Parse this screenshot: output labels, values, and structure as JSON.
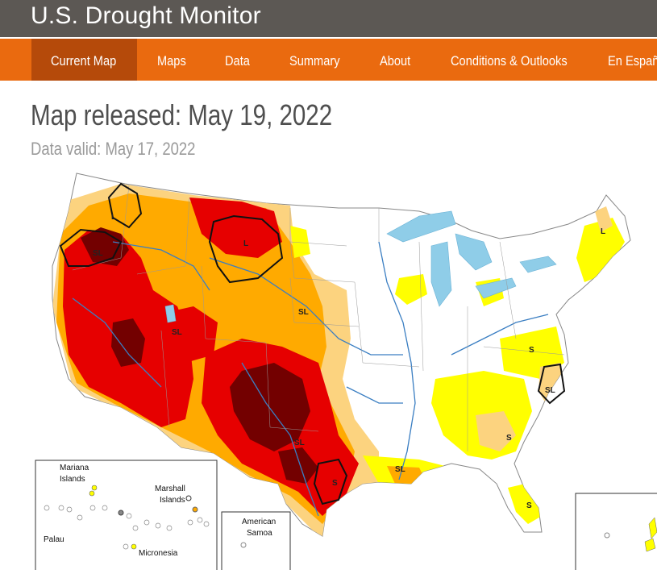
{
  "site": {
    "title": "U.S. Drought Monitor"
  },
  "nav": {
    "items": [
      {
        "label": "Current Map",
        "active": true
      },
      {
        "label": "Maps"
      },
      {
        "label": "Data"
      },
      {
        "label": "Summary"
      },
      {
        "label": "About"
      },
      {
        "label": "Conditions & Outlooks"
      },
      {
        "label": "En Españo"
      }
    ]
  },
  "header": {
    "released": "Map released: May 19, 2022",
    "valid": "Data valid: May 17, 2022"
  },
  "map": {
    "colors": {
      "D0": "#ffff00",
      "D1": "#fcd37f",
      "D2": "#ffaa00",
      "D3": "#e60000",
      "D4": "#730000",
      "water": "#8fcde8",
      "rivers": "#3a7ec2"
    },
    "impact_labels": {
      "L": "L",
      "SL": "SL",
      "S": "S"
    },
    "insets": {
      "pacific": {
        "mariana": "Mariana Islands",
        "marshall": "Marshall Islands",
        "palau": "Palau",
        "micronesia": "Micronesia"
      },
      "samoa": "American Samoa"
    }
  }
}
